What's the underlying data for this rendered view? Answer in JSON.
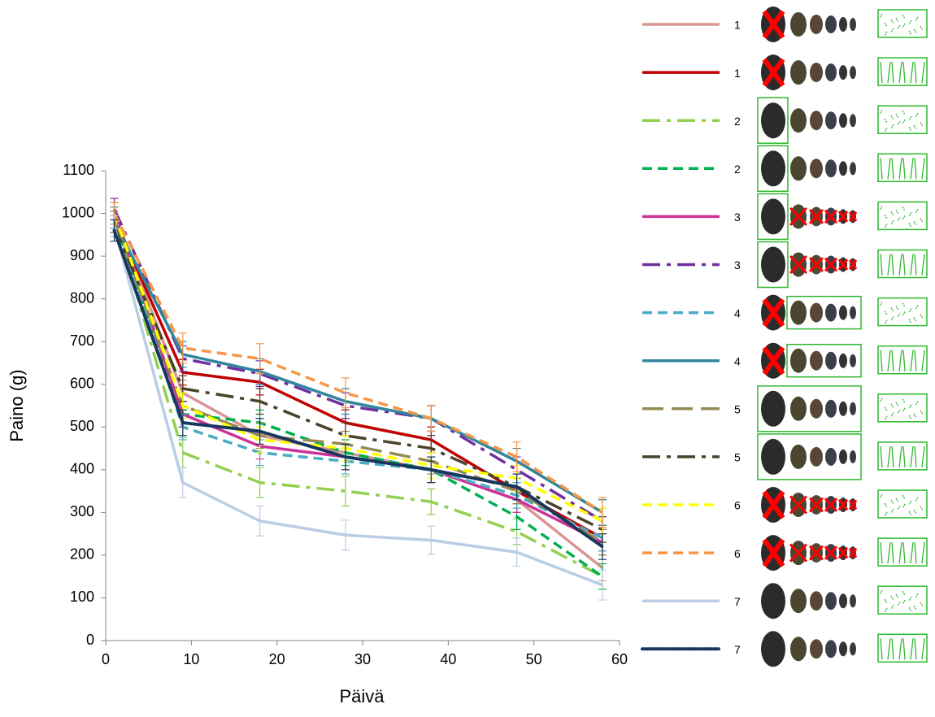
{
  "chart_data": {
    "type": "line",
    "x_label": "Päivä",
    "y_label": "Paino (g)",
    "x": [
      1,
      9,
      18,
      28,
      38,
      48,
      58
    ],
    "xlim": [
      0,
      60
    ],
    "xticks": [
      0,
      10,
      20,
      30,
      40,
      50,
      60
    ],
    "ylim": [
      0,
      1100
    ],
    "yticks": [
      0,
      100,
      200,
      300,
      400,
      500,
      600,
      700,
      800,
      900,
      1000,
      1100
    ],
    "series": [
      {
        "name": "1",
        "color": "#d99594",
        "style": "solid",
        "values": [
          1000,
          580,
          480,
          440,
          400,
          330,
          170
        ],
        "errors": [
          25,
          30,
          30,
          30,
          30,
          30,
          30
        ]
      },
      {
        "name": "1",
        "color": "#c00000",
        "style": "solid",
        "values": [
          990,
          628,
          605,
          510,
          470,
          350,
          240
        ],
        "errors": [
          25,
          30,
          30,
          30,
          30,
          30,
          30
        ]
      },
      {
        "name": "2",
        "color": "#92d050",
        "style": "dashdot",
        "values": [
          990,
          440,
          370,
          350,
          325,
          255,
          150
        ],
        "errors": [
          25,
          35,
          35,
          35,
          30,
          30,
          30
        ]
      },
      {
        "name": "2",
        "color": "#00b050",
        "style": "dash",
        "values": [
          980,
          530,
          510,
          440,
          400,
          290,
          150
        ],
        "errors": [
          25,
          30,
          30,
          30,
          30,
          30,
          30
        ]
      },
      {
        "name": "3",
        "color": "#cc3399",
        "style": "solid",
        "values": [
          1000,
          530,
          455,
          430,
          400,
          330,
          230
        ],
        "errors": [
          25,
          30,
          30,
          30,
          30,
          30,
          30
        ]
      },
      {
        "name": "3",
        "color": "#7030a0",
        "style": "dashdot",
        "values": [
          1010,
          660,
          625,
          550,
          520,
          400,
          280
        ],
        "errors": [
          25,
          30,
          30,
          30,
          30,
          30,
          30
        ]
      },
      {
        "name": "4",
        "color": "#4bacc6",
        "style": "dash",
        "values": [
          990,
          500,
          440,
          420,
          400,
          340,
          240
        ],
        "errors": [
          25,
          30,
          30,
          30,
          30,
          30,
          30
        ]
      },
      {
        "name": "4",
        "color": "#31859c",
        "style": "solid",
        "values": [
          980,
          670,
          630,
          560,
          520,
          420,
          300
        ],
        "errors": [
          25,
          30,
          30,
          30,
          30,
          30,
          30
        ]
      },
      {
        "name": "5",
        "color": "#948a54",
        "style": "longdash",
        "values": [
          980,
          550,
          480,
          460,
          420,
          350,
          230
        ],
        "errors": [
          25,
          30,
          30,
          30,
          30,
          30,
          30
        ]
      },
      {
        "name": "5",
        "color": "#494429",
        "style": "dashdot",
        "values": [
          970,
          590,
          560,
          480,
          450,
          360,
          260
        ],
        "errors": [
          25,
          30,
          30,
          30,
          30,
          30,
          30
        ]
      },
      {
        "name": "6",
        "color": "#ffff00",
        "style": "dash",
        "values": [
          1000,
          550,
          470,
          450,
          410,
          380,
          280
        ],
        "errors": [
          25,
          30,
          30,
          30,
          30,
          30,
          30
        ]
      },
      {
        "name": "6",
        "color": "#f79646",
        "style": "dash",
        "values": [
          1000,
          685,
          660,
          580,
          520,
          430,
          300
        ],
        "errors": [
          25,
          35,
          35,
          35,
          30,
          35,
          35
        ]
      },
      {
        "name": "7",
        "color": "#b9cde5",
        "style": "solid",
        "values": [
          970,
          370,
          280,
          247,
          235,
          207,
          130
        ],
        "errors": [
          25,
          35,
          35,
          35,
          33,
          33,
          35
        ]
      },
      {
        "name": "7",
        "color": "#17375e",
        "style": "dot",
        "values": [
          960,
          510,
          490,
          430,
          400,
          360,
          220
        ],
        "errors": [
          25,
          30,
          30,
          30,
          30,
          30,
          30
        ]
      }
    ]
  }
}
